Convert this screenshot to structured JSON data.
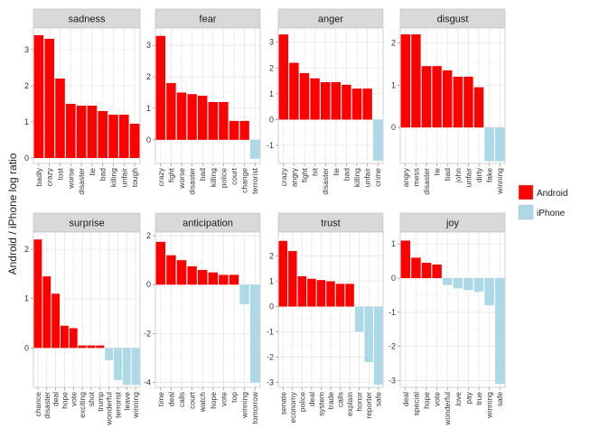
{
  "chart_data": {
    "type": "bar",
    "ylabel": "Android / iPhone log ratio",
    "legend": {
      "placement": "right",
      "entries": [
        {
          "name": "Android",
          "color": "#ff0000"
        },
        {
          "name": "iPhone",
          "color": "#add8e6"
        }
      ]
    },
    "grid": true,
    "panels": [
      {
        "title": "sadness",
        "ylim": [
          -0.15,
          3.6
        ],
        "yticks": [
          0,
          1,
          2,
          3
        ],
        "categories": [
          "badly",
          "crazy",
          "lost",
          "worse",
          "disaster",
          "lie",
          "bad",
          "killing",
          "unfair",
          "tough"
        ],
        "values": [
          3.4,
          3.3,
          2.2,
          1.5,
          1.45,
          1.45,
          1.3,
          1.2,
          1.2,
          0.95
        ],
        "devices": [
          "Android",
          "Android",
          "Android",
          "Android",
          "Android",
          "Android",
          "Android",
          "Android",
          "Android",
          "Android"
        ]
      },
      {
        "title": "fear",
        "ylim": [
          -0.75,
          3.55
        ],
        "yticks": [
          0,
          1,
          2,
          3
        ],
        "categories": [
          "crazy",
          "fight",
          "worse",
          "disaster",
          "bad",
          "killing",
          "police",
          "court",
          "change",
          "terrorist"
        ],
        "values": [
          3.3,
          1.8,
          1.5,
          1.45,
          1.4,
          1.2,
          1.2,
          0.6,
          0.6,
          -0.6
        ],
        "devices": [
          "Android",
          "Android",
          "Android",
          "Android",
          "Android",
          "Android",
          "Android",
          "Android",
          "Android",
          "iPhone"
        ]
      },
      {
        "title": "anger",
        "ylim": [
          -1.7,
          3.55
        ],
        "yticks": [
          -1,
          0,
          1,
          2,
          3
        ],
        "categories": [
          "crazy",
          "angry",
          "fight",
          "hit",
          "disaster",
          "lie",
          "bad",
          "killing",
          "unfair",
          "crime"
        ],
        "values": [
          3.3,
          2.2,
          1.8,
          1.6,
          1.45,
          1.45,
          1.35,
          1.2,
          1.2,
          -1.6
        ],
        "devices": [
          "Android",
          "Android",
          "Android",
          "Android",
          "Android",
          "Android",
          "Android",
          "Android",
          "Android",
          "iPhone"
        ]
      },
      {
        "title": "disgust",
        "ylim": [
          -0.85,
          2.35
        ],
        "yticks": [
          0,
          1,
          2
        ],
        "categories": [
          "angry",
          "mess",
          "disaster",
          "lie",
          "bad",
          "john",
          "unfair",
          "dirty",
          "fake",
          "winning"
        ],
        "values": [
          2.2,
          2.2,
          1.45,
          1.45,
          1.35,
          1.2,
          1.2,
          0.95,
          -0.8,
          -0.8
        ],
        "devices": [
          "Android",
          "Android",
          "Android",
          "Android",
          "Android",
          "Android",
          "Android",
          "Android",
          "iPhone",
          "iPhone"
        ]
      },
      {
        "title": "surprise",
        "ylim": [
          -0.8,
          2.35
        ],
        "yticks": [
          0,
          1,
          2
        ],
        "categories": [
          "chance",
          "disaster",
          "deal",
          "hope",
          "vote",
          "exciting",
          "shot",
          "trump",
          "wonderful",
          "terrorist",
          "leave",
          "winning"
        ],
        "values": [
          2.2,
          1.45,
          1.1,
          0.45,
          0.4,
          0.05,
          0.05,
          0.05,
          -0.25,
          -0.65,
          -0.75,
          -0.75
        ],
        "devices": [
          "Android",
          "Android",
          "Android",
          "Android",
          "Android",
          "Android",
          "Android",
          "Android",
          "iPhone",
          "iPhone",
          "iPhone",
          "iPhone"
        ]
      },
      {
        "title": "anticipation",
        "ylim": [
          -4.2,
          2.15
        ],
        "yticks": [
          -4,
          -2,
          0,
          2
        ],
        "categories": [
          "time",
          "deal",
          "calls",
          "court",
          "watch",
          "hope",
          "vote",
          "top",
          "winning",
          "tomorrow"
        ],
        "values": [
          1.75,
          1.2,
          1.0,
          0.75,
          0.6,
          0.5,
          0.4,
          0.4,
          -0.8,
          -4.0
        ],
        "devices": [
          "Android",
          "Android",
          "Android",
          "Android",
          "Android",
          "Android",
          "Android",
          "Android",
          "iPhone",
          "iPhone"
        ]
      },
      {
        "title": "trust",
        "ylim": [
          -3.2,
          2.95
        ],
        "yticks": [
          -3,
          -2,
          -1,
          0,
          1,
          2
        ],
        "categories": [
          "senate",
          "economy",
          "police",
          "deal",
          "system",
          "trade",
          "calls",
          "explain",
          "honor",
          "reporter",
          "safe"
        ],
        "values": [
          2.6,
          2.2,
          1.2,
          1.1,
          1.05,
          1.0,
          0.9,
          0.9,
          -1.0,
          -2.2,
          -3.1
        ],
        "devices": [
          "Android",
          "Android",
          "Android",
          "Android",
          "Android",
          "Android",
          "Android",
          "Android",
          "iPhone",
          "iPhone",
          "iPhone"
        ]
      },
      {
        "title": "joy",
        "ylim": [
          -3.2,
          1.35
        ],
        "yticks": [
          -3,
          -2,
          -1,
          0,
          1
        ],
        "categories": [
          "deal",
          "special",
          "hope",
          "vote",
          "wonderful",
          "love",
          "pay",
          "true",
          "winning",
          "safe"
        ],
        "values": [
          1.1,
          0.6,
          0.45,
          0.4,
          -0.2,
          -0.3,
          -0.35,
          -0.4,
          -0.8,
          -3.1
        ],
        "devices": [
          "Android",
          "Android",
          "Android",
          "Android",
          "iPhone",
          "iPhone",
          "iPhone",
          "iPhone",
          "iPhone",
          "iPhone"
        ]
      }
    ]
  }
}
